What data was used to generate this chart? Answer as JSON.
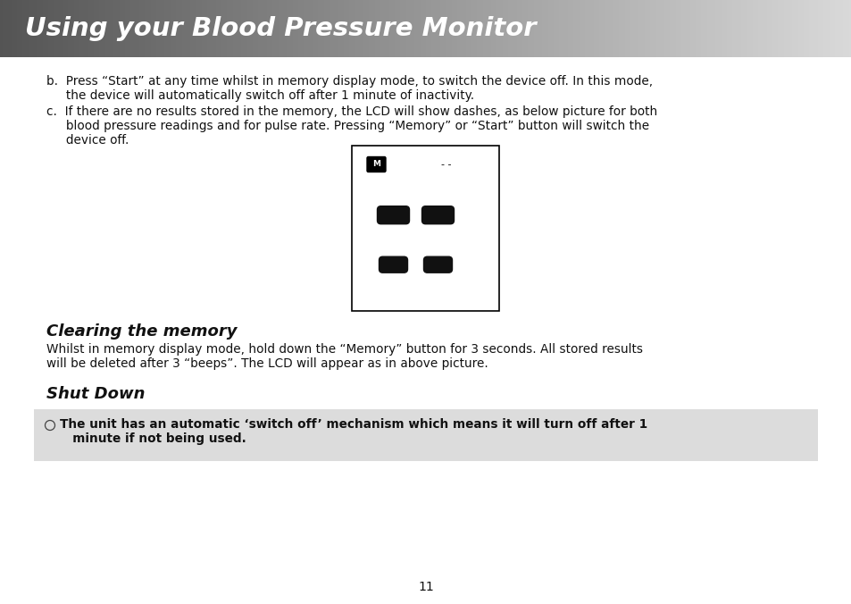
{
  "title": "Using your Blood Pressure Monitor",
  "body_bg": "#ffffff",
  "text_b_line1": "b.  Press “Start” at any time whilst in memory display mode, to switch the device off. In this mode,",
  "text_b_line2": "     the device will automatically switch off after 1 minute of inactivity.",
  "text_c_line1": "c.  If there are no results stored in the memory, the LCD will show dashes, as below picture for both",
  "text_c_line2": "     blood pressure readings and for pulse rate. Pressing “Memory” or “Start” button will switch the",
  "text_c_line3": "     device off.",
  "section1_title": "Clearing the memory",
  "section1_line1": "Whilst in memory display mode, hold down the “Memory” button for 3 seconds. All stored results",
  "section1_line2": "will be deleted after 3 “beeps”. The LCD will appear as in above picture.",
  "section2_title": "Shut Down",
  "note_line1": "The unit has an automatic ‘switch off’ mechanism which means it will turn off after 1",
  "note_line2": "   minute if not being used.",
  "note_bg": "#dcdcdc",
  "page_number": "11"
}
